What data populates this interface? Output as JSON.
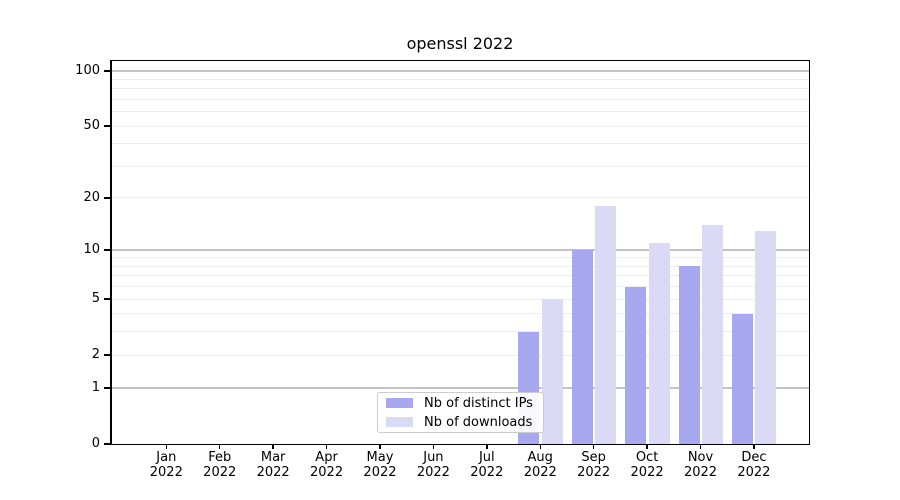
{
  "figure": {
    "title": "openssl 2022"
  },
  "chart_data": {
    "type": "bar",
    "title": "openssl 2022",
    "categories": [
      "Jan",
      "Feb",
      "Mar",
      "Apr",
      "May",
      "Jun",
      "Jul",
      "Aug",
      "Sep",
      "Oct",
      "Nov",
      "Dec"
    ],
    "x_year": "2022",
    "series": [
      {
        "name": "Nb of distinct IPs",
        "color": "#a8a8f0",
        "values": [
          0,
          0,
          0,
          0,
          0,
          0,
          0,
          3,
          10,
          6,
          8,
          4
        ]
      },
      {
        "name": "Nb of downloads",
        "color": "#dadaf7",
        "values": [
          0,
          0,
          0,
          0,
          0,
          0,
          0,
          5,
          18,
          11,
          14,
          13
        ]
      }
    ],
    "y_ticks": [
      0,
      1,
      2,
      5,
      10,
      20,
      50,
      100
    ],
    "y_major_gridlines": [
      1,
      10,
      100
    ],
    "y_minor_gridlines": [
      2,
      3,
      4,
      5,
      6,
      7,
      8,
      9,
      20,
      30,
      40,
      50,
      60,
      70,
      80,
      90
    ],
    "y_scale": "log1p",
    "ylim": [
      0,
      113
    ],
    "grid": true,
    "legend_position": "lower center"
  }
}
